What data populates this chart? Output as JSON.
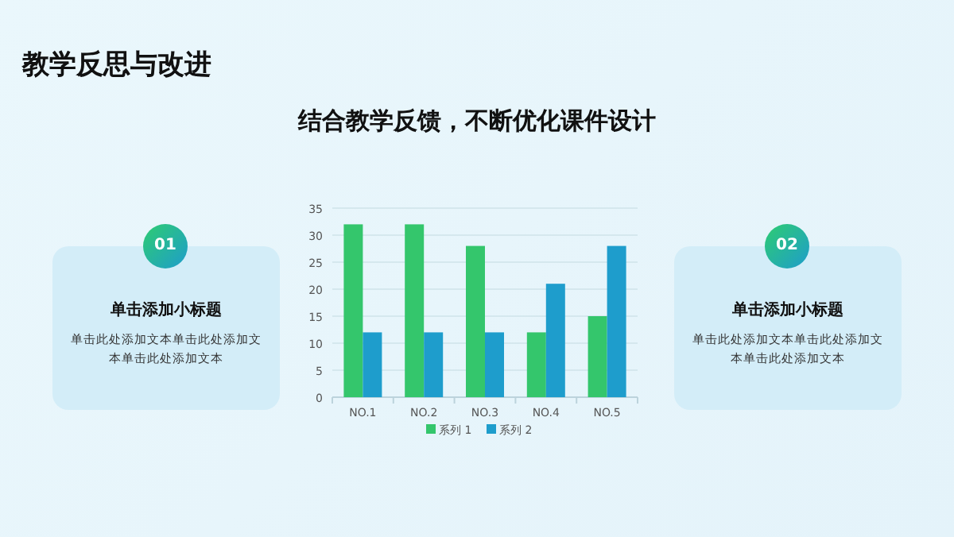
{
  "chart_data": {
    "type": "bar",
    "title": "教学反思与改进",
    "subtitle": "结合教学反馈，不断优化课件设计",
    "categories": [
      "NO.1",
      "NO.2",
      "NO.3",
      "NO.4",
      "NO.5"
    ],
    "series": [
      {
        "name": "系列 1",
        "color": "#34c66c",
        "values": [
          32,
          32,
          28,
          12,
          15
        ]
      },
      {
        "name": "系列 2",
        "color": "#1e9dcc",
        "values": [
          12,
          12,
          12,
          21,
          28
        ]
      }
    ],
    "ylim": [
      0,
      35
    ],
    "yticks": [
      0,
      5,
      10,
      15,
      20,
      25,
      30,
      35
    ],
    "grid": "y",
    "legend": "bottom",
    "annotations": [
      "01",
      "单击添加小标题",
      "单击此处添加文本单击此处添加文本单击此处添加文本",
      "02",
      "单击添加小标题",
      "单击此处添加文本单击此处添加文本单击此处添加文本"
    ]
  }
}
